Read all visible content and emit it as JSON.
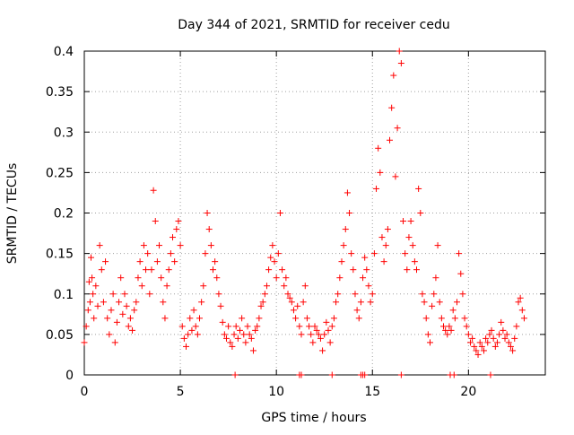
{
  "chart_data": {
    "type": "scatter",
    "title": "Day 344 of 2021, SRMTID for receiver cedu",
    "xlabel": "GPS time / hours",
    "ylabel": "SRMTID / TECUs",
    "xlim": [
      0,
      24
    ],
    "ylim": [
      0,
      0.4
    ],
    "x_ticks": [
      0,
      5,
      10,
      15,
      20
    ],
    "x_tick_labels": [
      "0",
      "5",
      "10",
      "15",
      "20"
    ],
    "y_ticks": [
      0,
      0.05,
      0.1,
      0.15,
      0.2,
      0.25,
      0.3,
      0.35,
      0.4
    ],
    "y_tick_labels": [
      "0",
      "0.05",
      "0.1",
      "0.15",
      "0.2",
      "0.25",
      "0.3",
      "0.35",
      "0.4"
    ],
    "grid": true,
    "marker": "+",
    "marker_color": "#ff0000",
    "series": [
      {
        "name": "SRMTID",
        "points": [
          [
            0.0,
            0.04
          ],
          [
            0.1,
            0.06
          ],
          [
            0.2,
            0.08
          ],
          [
            0.25,
            0.115
          ],
          [
            0.3,
            0.09
          ],
          [
            0.35,
            0.145
          ],
          [
            0.4,
            0.12
          ],
          [
            0.45,
            0.1
          ],
          [
            0.5,
            0.07
          ],
          [
            0.6,
            0.11
          ],
          [
            0.7,
            0.085
          ],
          [
            0.8,
            0.16
          ],
          [
            0.9,
            0.13
          ],
          [
            1.0,
            0.09
          ],
          [
            1.1,
            0.14
          ],
          [
            1.2,
            0.07
          ],
          [
            1.3,
            0.05
          ],
          [
            1.4,
            0.08
          ],
          [
            1.5,
            0.1
          ],
          [
            1.6,
            0.04
          ],
          [
            1.7,
            0.065
          ],
          [
            1.8,
            0.09
          ],
          [
            1.9,
            0.12
          ],
          [
            2.0,
            0.075
          ],
          [
            2.1,
            0.1
          ],
          [
            2.2,
            0.085
          ],
          [
            2.3,
            0.06
          ],
          [
            2.4,
            0.07
          ],
          [
            2.5,
            0.055
          ],
          [
            2.6,
            0.08
          ],
          [
            2.7,
            0.09
          ],
          [
            2.8,
            0.12
          ],
          [
            2.9,
            0.14
          ],
          [
            3.0,
            0.11
          ],
          [
            3.1,
            0.16
          ],
          [
            3.2,
            0.13
          ],
          [
            3.3,
            0.15
          ],
          [
            3.4,
            0.1
          ],
          [
            3.5,
            0.13
          ],
          [
            3.6,
            0.228
          ],
          [
            3.7,
            0.19
          ],
          [
            3.8,
            0.14
          ],
          [
            3.9,
            0.16
          ],
          [
            4.0,
            0.12
          ],
          [
            4.1,
            0.09
          ],
          [
            4.2,
            0.07
          ],
          [
            4.3,
            0.11
          ],
          [
            4.4,
            0.13
          ],
          [
            4.5,
            0.15
          ],
          [
            4.6,
            0.17
          ],
          [
            4.7,
            0.14
          ],
          [
            4.8,
            0.18
          ],
          [
            4.9,
            0.19
          ],
          [
            5.0,
            0.16
          ],
          [
            5.1,
            0.06
          ],
          [
            5.2,
            0.045
          ],
          [
            5.3,
            0.035
          ],
          [
            5.4,
            0.05
          ],
          [
            5.5,
            0.07
          ],
          [
            5.6,
            0.055
          ],
          [
            5.7,
            0.08
          ],
          [
            5.8,
            0.06
          ],
          [
            5.9,
            0.05
          ],
          [
            6.0,
            0.07
          ],
          [
            6.1,
            0.09
          ],
          [
            6.2,
            0.11
          ],
          [
            6.3,
            0.15
          ],
          [
            6.4,
            0.2
          ],
          [
            6.5,
            0.18
          ],
          [
            6.6,
            0.16
          ],
          [
            6.7,
            0.13
          ],
          [
            6.8,
            0.14
          ],
          [
            6.9,
            0.12
          ],
          [
            7.0,
            0.1
          ],
          [
            7.1,
            0.085
          ],
          [
            7.2,
            0.065
          ],
          [
            7.3,
            0.05
          ],
          [
            7.4,
            0.045
          ],
          [
            7.5,
            0.06
          ],
          [
            7.6,
            0.04
          ],
          [
            7.7,
            0.035
          ],
          [
            7.8,
            0.05
          ],
          [
            7.9,
            0.06
          ],
          [
            8.0,
            0.045
          ],
          [
            8.1,
            0.055
          ],
          [
            8.2,
            0.07
          ],
          [
            8.3,
            0.05
          ],
          [
            8.4,
            0.04
          ],
          [
            8.5,
            0.06
          ],
          [
            8.6,
            0.05
          ],
          [
            8.7,
            0.045
          ],
          [
            8.8,
            0.03
          ],
          [
            8.9,
            0.055
          ],
          [
            9.0,
            0.06
          ],
          [
            9.1,
            0.07
          ],
          [
            9.2,
            0.085
          ],
          [
            9.3,
            0.09
          ],
          [
            9.4,
            0.1
          ],
          [
            9.5,
            0.11
          ],
          [
            9.6,
            0.13
          ],
          [
            9.7,
            0.145
          ],
          [
            9.8,
            0.16
          ],
          [
            9.9,
            0.14
          ],
          [
            10.0,
            0.12
          ],
          [
            10.1,
            0.15
          ],
          [
            10.2,
            0.2
          ],
          [
            10.3,
            0.13
          ],
          [
            10.4,
            0.11
          ],
          [
            10.5,
            0.12
          ],
          [
            10.6,
            0.1
          ],
          [
            10.7,
            0.095
          ],
          [
            10.8,
            0.09
          ],
          [
            10.9,
            0.08
          ],
          [
            11.0,
            0.07
          ],
          [
            11.1,
            0.085
          ],
          [
            11.2,
            0.06
          ],
          [
            11.3,
            0.05
          ],
          [
            11.4,
            0.09
          ],
          [
            11.5,
            0.11
          ],
          [
            11.6,
            0.07
          ],
          [
            11.7,
            0.06
          ],
          [
            11.8,
            0.05
          ],
          [
            11.9,
            0.04
          ],
          [
            12.0,
            0.06
          ],
          [
            12.1,
            0.055
          ],
          [
            12.2,
            0.05
          ],
          [
            12.3,
            0.045
          ],
          [
            12.4,
            0.03
          ],
          [
            12.5,
            0.05
          ],
          [
            12.6,
            0.065
          ],
          [
            12.7,
            0.055
          ],
          [
            12.8,
            0.04
          ],
          [
            12.9,
            0.06
          ],
          [
            13.0,
            0.07
          ],
          [
            13.1,
            0.09
          ],
          [
            13.2,
            0.1
          ],
          [
            13.3,
            0.12
          ],
          [
            13.4,
            0.14
          ],
          [
            13.5,
            0.16
          ],
          [
            13.6,
            0.18
          ],
          [
            13.7,
            0.225
          ],
          [
            13.8,
            0.2
          ],
          [
            13.9,
            0.15
          ],
          [
            14.0,
            0.13
          ],
          [
            14.1,
            0.1
          ],
          [
            14.2,
            0.08
          ],
          [
            14.3,
            0.07
          ],
          [
            14.4,
            0.09
          ],
          [
            14.5,
            0.12
          ],
          [
            14.6,
            0.145
          ],
          [
            14.7,
            0.13
          ],
          [
            14.8,
            0.11
          ],
          [
            14.9,
            0.09
          ],
          [
            15.0,
            0.1
          ],
          [
            15.1,
            0.15
          ],
          [
            15.2,
            0.23
          ],
          [
            15.3,
            0.28
          ],
          [
            15.4,
            0.25
          ],
          [
            15.5,
            0.17
          ],
          [
            15.6,
            0.14
          ],
          [
            15.7,
            0.16
          ],
          [
            15.8,
            0.18
          ],
          [
            15.9,
            0.29
          ],
          [
            16.0,
            0.33
          ],
          [
            16.1,
            0.37
          ],
          [
            16.2,
            0.245
          ],
          [
            16.3,
            0.305
          ],
          [
            16.4,
            0.4
          ],
          [
            16.5,
            0.385
          ],
          [
            16.6,
            0.19
          ],
          [
            16.7,
            0.15
          ],
          [
            16.8,
            0.13
          ],
          [
            16.9,
            0.17
          ],
          [
            17.0,
            0.19
          ],
          [
            17.1,
            0.16
          ],
          [
            17.2,
            0.14
          ],
          [
            17.3,
            0.13
          ],
          [
            17.4,
            0.23
          ],
          [
            17.5,
            0.2
          ],
          [
            17.6,
            0.1
          ],
          [
            17.7,
            0.09
          ],
          [
            17.8,
            0.07
          ],
          [
            17.9,
            0.05
          ],
          [
            18.0,
            0.04
          ],
          [
            18.1,
            0.085
          ],
          [
            18.2,
            0.1
          ],
          [
            18.3,
            0.12
          ],
          [
            18.4,
            0.16
          ],
          [
            18.5,
            0.09
          ],
          [
            18.6,
            0.07
          ],
          [
            18.7,
            0.06
          ],
          [
            18.8,
            0.055
          ],
          [
            18.9,
            0.05
          ],
          [
            19.0,
            0.06
          ],
          [
            19.1,
            0.055
          ],
          [
            19.2,
            0.08
          ],
          [
            19.3,
            0.07
          ],
          [
            19.4,
            0.09
          ],
          [
            19.5,
            0.15
          ],
          [
            19.6,
            0.125
          ],
          [
            19.7,
            0.1
          ],
          [
            19.8,
            0.07
          ],
          [
            19.9,
            0.06
          ],
          [
            20.0,
            0.05
          ],
          [
            20.1,
            0.04
          ],
          [
            20.2,
            0.045
          ],
          [
            20.3,
            0.035
          ],
          [
            20.4,
            0.03
          ],
          [
            20.5,
            0.025
          ],
          [
            20.6,
            0.04
          ],
          [
            20.7,
            0.035
          ],
          [
            20.8,
            0.03
          ],
          [
            20.9,
            0.045
          ],
          [
            21.0,
            0.04
          ],
          [
            21.1,
            0.05
          ],
          [
            21.2,
            0.055
          ],
          [
            21.3,
            0.045
          ],
          [
            21.4,
            0.035
          ],
          [
            21.5,
            0.04
          ],
          [
            21.6,
            0.05
          ],
          [
            21.7,
            0.065
          ],
          [
            21.8,
            0.055
          ],
          [
            21.9,
            0.045
          ],
          [
            22.0,
            0.05
          ],
          [
            22.1,
            0.04
          ],
          [
            22.2,
            0.035
          ],
          [
            22.3,
            0.03
          ],
          [
            22.4,
            0.045
          ],
          [
            22.5,
            0.06
          ],
          [
            22.6,
            0.09
          ],
          [
            22.7,
            0.095
          ],
          [
            22.8,
            0.08
          ],
          [
            22.9,
            0.07
          ]
        ]
      }
    ],
    "zero_markers_x": [
      7.85,
      11.2,
      11.3,
      12.9,
      14.4,
      14.5,
      14.6,
      16.5,
      19.05,
      19.25,
      21.15
    ]
  }
}
